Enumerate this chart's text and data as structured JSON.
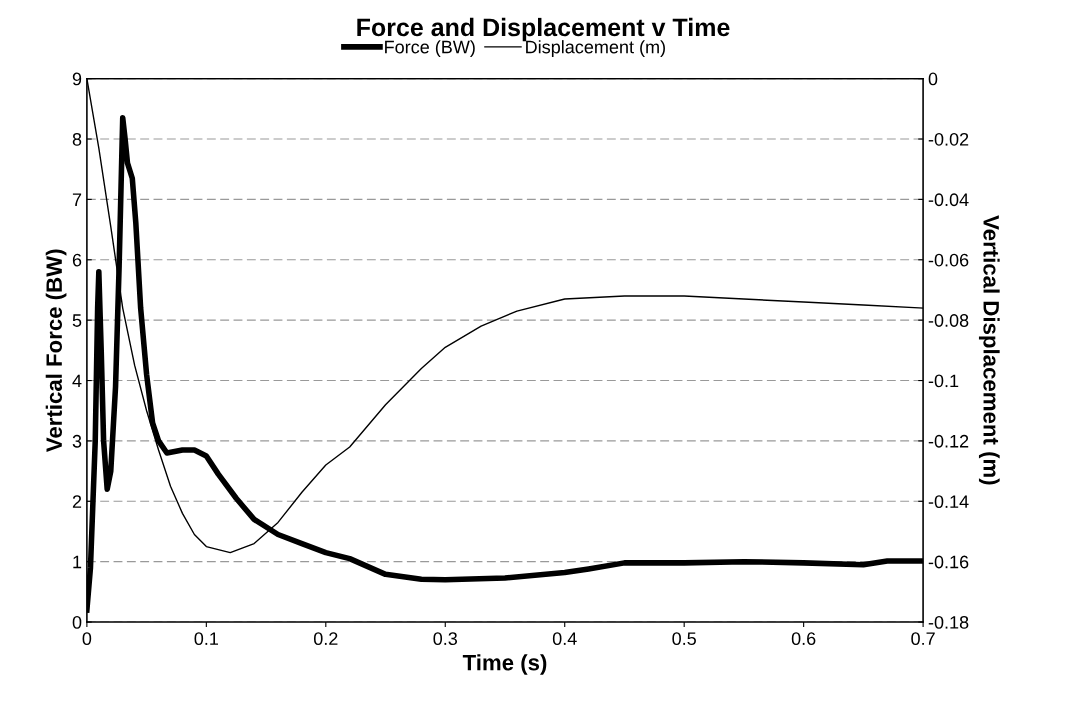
{
  "chart_data": {
    "type": "line",
    "title": "Force and Displacement v Time",
    "xlabel": "Time (s)",
    "ylabel": "Vertical Force (BW)",
    "y2label": "Vertical Displacement (m)",
    "series": [
      {
        "name": "Force (BW)",
        "color": "#000000",
        "axis": "y",
        "x": [
          0,
          0.003,
          0.007,
          0.009,
          0.01,
          0.012,
          0.014,
          0.017,
          0.02,
          0.024,
          0.027,
          0.03,
          0.032,
          0.034,
          0.038,
          0.041,
          0.045,
          0.05,
          0.055,
          0.06,
          0.067,
          0.08,
          0.09,
          0.1,
          0.11,
          0.125,
          0.14,
          0.16,
          0.18,
          0.2,
          0.22,
          0.25,
          0.28,
          0.3,
          0.35,
          0.4,
          0.42,
          0.45,
          0.5,
          0.55,
          0.6,
          0.65,
          0.67,
          0.7
        ],
        "values": [
          0.2,
          0.9,
          3.0,
          5.2,
          5.8,
          4.5,
          3.0,
          2.2,
          2.5,
          3.9,
          5.9,
          8.35,
          8.0,
          7.6,
          7.35,
          6.6,
          5.2,
          4.1,
          3.3,
          3.0,
          2.8,
          2.85,
          2.85,
          2.75,
          2.45,
          2.05,
          1.7,
          1.45,
          1.3,
          1.15,
          1.05,
          0.79,
          0.71,
          0.7,
          0.73,
          0.82,
          0.88,
          0.98,
          0.98,
          1.0,
          0.98,
          0.95,
          1.01,
          1.01
        ]
      },
      {
        "name": "Displacement (m)",
        "color": "#000000",
        "axis": "y2",
        "x": [
          0,
          0.01,
          0.02,
          0.03,
          0.04,
          0.05,
          0.06,
          0.07,
          0.08,
          0.09,
          0.1,
          0.12,
          0.14,
          0.16,
          0.18,
          0.2,
          0.22,
          0.25,
          0.28,
          0.3,
          0.33,
          0.36,
          0.4,
          0.45,
          0.5,
          0.55,
          0.6,
          0.65,
          0.7
        ],
        "values": [
          0,
          -0.023,
          -0.049,
          -0.076,
          -0.095,
          -0.11,
          -0.123,
          -0.135,
          -0.144,
          -0.151,
          -0.155,
          -0.157,
          -0.154,
          -0.147,
          -0.137,
          -0.128,
          -0.122,
          -0.108,
          -0.096,
          -0.089,
          -0.082,
          -0.077,
          -0.073,
          -0.072,
          -0.072,
          -0.073,
          -0.074,
          -0.075,
          -0.076
        ]
      }
    ],
    "xlim": [
      0,
      0.7
    ],
    "xticks": [
      0,
      0.1,
      0.2,
      0.3,
      0.4,
      0.5,
      0.6,
      0.7
    ],
    "ylim": [
      0,
      9
    ],
    "yticks": [
      0,
      1,
      2,
      3,
      4,
      5,
      6,
      7,
      8,
      9
    ],
    "y2lim": [
      -0.18,
      0
    ],
    "y2ticks": [
      -0.18,
      -0.16,
      -0.14,
      -0.12,
      -0.1,
      -0.08,
      -0.06,
      -0.04,
      -0.02,
      0
    ],
    "grid": "y",
    "legend": "top",
    "marker": "none",
    "line_style": "solid"
  }
}
